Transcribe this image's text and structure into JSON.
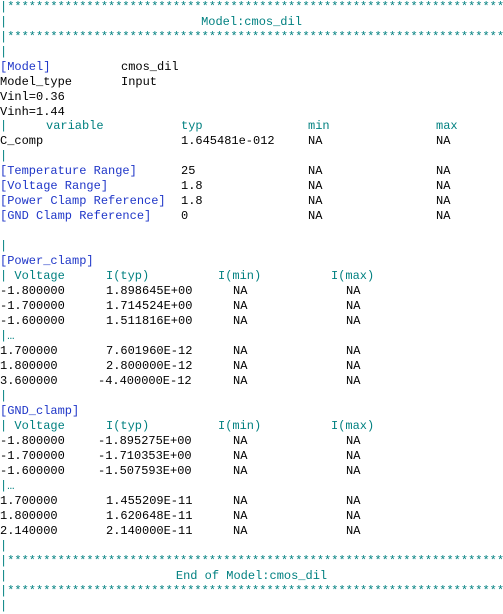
{
  "colors": {
    "comment": "#008080",
    "keyword": "#1f36c8",
    "text": "#000000"
  },
  "border_line": "|*********************************************************************************************",
  "pipe": "|",
  "header_title": "Model:cmos_dil",
  "footer_title": "End of Model:cmos_dil",
  "model": {
    "keyword": "[Model]",
    "name": "cmos_dil",
    "type_label": "Model_type",
    "type_value": "Input",
    "vinl": "Vinl=0.36",
    "vinh": "Vinh=1.44"
  },
  "param_header": {
    "variable": "variable",
    "typ": "typ",
    "min": "min",
    "max": "max"
  },
  "c_comp": {
    "label": "C_comp",
    "typ": "1.645481e-012",
    "min": "NA",
    "max": "NA"
  },
  "ranges": [
    {
      "key": "[Temperature Range]",
      "typ": "25",
      "min": "NA",
      "max": "NA"
    },
    {
      "key": "[Voltage Range]",
      "typ": "1.8",
      "min": "NA",
      "max": "NA"
    },
    {
      "key": "[Power Clamp Reference]",
      "typ": "1.8",
      "min": "NA",
      "max": "NA"
    },
    {
      "key": "[GND Clamp Reference]",
      "typ": "0",
      "min": "NA",
      "max": "NA"
    }
  ],
  "power_clamp": {
    "keyword": "[Power_clamp]",
    "header": {
      "voltage": "| Voltage",
      "typ": "I(typ)",
      "min": "I(min)",
      "max": "I(max)"
    },
    "rows_top": [
      {
        "v": "-1.800000",
        "typ": "1.898645E+00",
        "min": "NA",
        "max": "NA"
      },
      {
        "v": "-1.700000",
        "typ": "1.714524E+00",
        "min": "NA",
        "max": "NA"
      },
      {
        "v": "-1.600000",
        "typ": "1.511816E+00",
        "min": "NA",
        "max": "NA"
      }
    ],
    "ellipsis": "|…",
    "rows_bottom": [
      {
        "v": "1.700000",
        "typ": "7.601960E-12",
        "min": "NA",
        "max": "NA"
      },
      {
        "v": "1.800000",
        "typ": "2.800000E-12",
        "min": "NA",
        "max": "NA"
      },
      {
        "v": "3.600000",
        "typ": "-4.400000E-12",
        "min": "NA",
        "max": "NA"
      }
    ]
  },
  "gnd_clamp": {
    "keyword": "[GND_clamp]",
    "header": {
      "voltage": "| Voltage",
      "typ": "I(typ)",
      "min": "I(min)",
      "max": "I(max)"
    },
    "rows_top": [
      {
        "v": "-1.800000",
        "typ": "-1.895275E+00",
        "min": "NA",
        "max": "NA"
      },
      {
        "v": "-1.700000",
        "typ": "-1.710353E+00",
        "min": "NA",
        "max": "NA"
      },
      {
        "v": "-1.600000",
        "typ": "-1.507593E+00",
        "min": "NA",
        "max": "NA"
      }
    ],
    "ellipsis": "|…",
    "rows_bottom": [
      {
        "v": "1.700000",
        "typ": "1.455209E-11",
        "min": "NA",
        "max": "NA"
      },
      {
        "v": "1.800000",
        "typ": "1.620648E-11",
        "min": "NA",
        "max": "NA"
      },
      {
        "v": "2.140000",
        "typ": "2.140000E-11",
        "min": "NA",
        "max": "NA"
      }
    ]
  }
}
